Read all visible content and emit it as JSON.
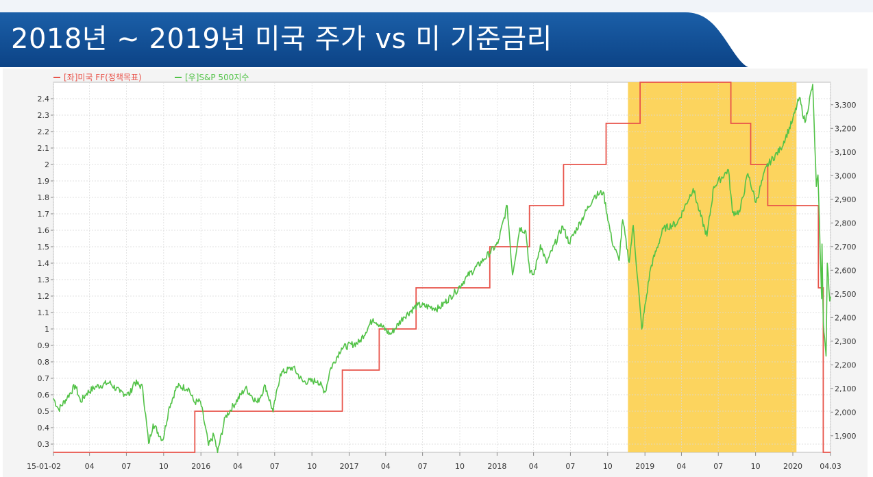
{
  "header": {
    "title": "2018년 ~ 2019년 미국 주가 vs 미 기준금리"
  },
  "colors": {
    "banner": "#0e4d94",
    "highlight": "#fcd050",
    "ff_line": "#e8534a",
    "sp_line": "#52c247",
    "legend_ff": "#e8534a",
    "legend_sp": "#52c247"
  },
  "chart_data": {
    "type": "line",
    "legend": {
      "placement": "top-left",
      "items": [
        "[좌]미국 FF(정책목표)",
        "[우]S&P 500지수"
      ]
    },
    "highlight_range": [
      "2018-11-20",
      "2020-01-10"
    ],
    "x_ticks": [
      {
        "d": "2015-01-02",
        "label": "15-01-02"
      },
      {
        "d": "2015-04-01",
        "label": "04"
      },
      {
        "d": "2015-07-01",
        "label": "07"
      },
      {
        "d": "2015-10-01",
        "label": "10"
      },
      {
        "d": "2016-01-01",
        "label": "2016"
      },
      {
        "d": "2016-04-01",
        "label": "04"
      },
      {
        "d": "2016-07-01",
        "label": "07"
      },
      {
        "d": "2016-10-01",
        "label": "10"
      },
      {
        "d": "2017-01-01",
        "label": "2017"
      },
      {
        "d": "2017-04-01",
        "label": "04"
      },
      {
        "d": "2017-07-01",
        "label": "07"
      },
      {
        "d": "2017-10-01",
        "label": "10"
      },
      {
        "d": "2018-01-01",
        "label": "2018"
      },
      {
        "d": "2018-04-01",
        "label": "04"
      },
      {
        "d": "2018-07-01",
        "label": "07"
      },
      {
        "d": "2018-10-01",
        "label": "10"
      },
      {
        "d": "2019-01-01",
        "label": "2019"
      },
      {
        "d": "2019-04-01",
        "label": "04"
      },
      {
        "d": "2019-07-01",
        "label": "07"
      },
      {
        "d": "2019-10-01",
        "label": "10"
      },
      {
        "d": "2020-01-01",
        "label": "2020"
      },
      {
        "d": "2020-04-03",
        "label": "04.03"
      }
    ],
    "x_range": [
      "2015-01-02",
      "2020-04-03"
    ],
    "y_left": {
      "range": [
        0.25,
        2.5
      ],
      "ticks": [
        0.3,
        0.4,
        0.5,
        0.6,
        0.7,
        0.8,
        0.9,
        1,
        1.1,
        1.2,
        1.3,
        1.4,
        1.5,
        1.6,
        1.7,
        1.8,
        1.9,
        2,
        2.1,
        2.2,
        2.3,
        2.4
      ]
    },
    "y_right": {
      "range": [
        1830,
        3395
      ],
      "ticks": [
        1900,
        2000,
        2100,
        2200,
        2300,
        2400,
        2500,
        2600,
        2700,
        2800,
        2900,
        3000,
        3100,
        3200,
        3300
      ],
      "tick_labels": [
        "1,900",
        "2,000",
        "2,100",
        "2,200",
        "2,300",
        "2,400",
        "2,500",
        "2,600",
        "2,700",
        "2,800",
        "2,900",
        "3,000",
        "3,100",
        "3,200",
        "3,300"
      ]
    },
    "grid": true,
    "series": [
      {
        "name": "[좌]미국 FF(정책목표)",
        "axis": "left",
        "step": true,
        "points": [
          [
            "2015-01-02",
            0.25
          ],
          [
            "2015-12-17",
            0.5
          ],
          [
            "2016-12-15",
            0.75
          ],
          [
            "2017-03-16",
            1.0
          ],
          [
            "2017-06-15",
            1.25
          ],
          [
            "2017-12-14",
            1.5
          ],
          [
            "2018-03-22",
            1.75
          ],
          [
            "2018-06-14",
            2.0
          ],
          [
            "2018-09-27",
            2.25
          ],
          [
            "2018-12-20",
            2.5
          ],
          [
            "2019-08-01",
            2.25
          ],
          [
            "2019-09-19",
            2.0
          ],
          [
            "2019-10-31",
            1.75
          ],
          [
            "2020-03-04",
            1.25
          ],
          [
            "2020-03-16",
            0.25
          ],
          [
            "2020-04-03",
            0.25
          ]
        ]
      },
      {
        "name": "[우]S&P 500지수",
        "axis": "right",
        "points": [
          [
            "2015-01-02",
            2058
          ],
          [
            "2015-01-15",
            2011
          ],
          [
            "2015-02-05",
            2062
          ],
          [
            "2015-02-25",
            2113
          ],
          [
            "2015-03-10",
            2044
          ],
          [
            "2015-03-25",
            2080
          ],
          [
            "2015-04-15",
            2106
          ],
          [
            "2015-05-20",
            2125
          ],
          [
            "2015-06-15",
            2084
          ],
          [
            "2015-07-10",
            2076
          ],
          [
            "2015-07-20",
            2128
          ],
          [
            "2015-08-10",
            2104
          ],
          [
            "2015-08-25",
            1867
          ],
          [
            "2015-09-05",
            1950
          ],
          [
            "2015-09-29",
            1881
          ],
          [
            "2015-10-15",
            2023
          ],
          [
            "2015-11-03",
            2109
          ],
          [
            "2015-12-01",
            2102
          ],
          [
            "2015-12-15",
            2043
          ],
          [
            "2015-12-31",
            2044
          ],
          [
            "2016-01-20",
            1859
          ],
          [
            "2016-02-02",
            1903
          ],
          [
            "2016-02-11",
            1829
          ],
          [
            "2016-03-01",
            1978
          ],
          [
            "2016-04-20",
            2102
          ],
          [
            "2016-05-19",
            2040
          ],
          [
            "2016-06-08",
            2112
          ],
          [
            "2016-06-27",
            2001
          ],
          [
            "2016-07-15",
            2162
          ],
          [
            "2016-08-15",
            2190
          ],
          [
            "2016-09-09",
            2128
          ],
          [
            "2016-10-15",
            2133
          ],
          [
            "2016-11-03",
            2085
          ],
          [
            "2016-11-15",
            2180
          ],
          [
            "2016-12-13",
            2271
          ],
          [
            "2017-01-26",
            2296
          ],
          [
            "2017-03-01",
            2395
          ],
          [
            "2017-04-13",
            2329
          ],
          [
            "2017-05-15",
            2402
          ],
          [
            "2017-06-19",
            2453
          ],
          [
            "2017-08-10",
            2438
          ],
          [
            "2017-09-20",
            2508
          ],
          [
            "2017-10-20",
            2575
          ],
          [
            "2017-11-30",
            2647
          ],
          [
            "2018-01-03",
            2713
          ],
          [
            "2018-01-26",
            2873
          ],
          [
            "2018-02-08",
            2581
          ],
          [
            "2018-02-26",
            2779
          ],
          [
            "2018-03-13",
            2765
          ],
          [
            "2018-03-23",
            2588
          ],
          [
            "2018-04-02",
            2582
          ],
          [
            "2018-04-18",
            2708
          ],
          [
            "2018-05-03",
            2630
          ],
          [
            "2018-06-12",
            2786
          ],
          [
            "2018-06-28",
            2716
          ],
          [
            "2018-08-29",
            2914
          ],
          [
            "2018-09-20",
            2931
          ],
          [
            "2018-10-11",
            2728
          ],
          [
            "2018-10-29",
            2641
          ],
          [
            "2018-11-07",
            2813
          ],
          [
            "2018-11-23",
            2633
          ],
          [
            "2018-12-03",
            2790
          ],
          [
            "2018-12-24",
            2351
          ],
          [
            "2019-01-15",
            2610
          ],
          [
            "2019-02-15",
            2775
          ],
          [
            "2019-03-22",
            2800
          ],
          [
            "2019-04-30",
            2946
          ],
          [
            "2019-05-15",
            2850
          ],
          [
            "2019-06-03",
            2744
          ],
          [
            "2019-06-20",
            2954
          ],
          [
            "2019-07-26",
            3025
          ],
          [
            "2019-08-05",
            2844
          ],
          [
            "2019-08-23",
            2847
          ],
          [
            "2019-09-12",
            3009
          ],
          [
            "2019-10-02",
            2887
          ],
          [
            "2019-10-28",
            3039
          ],
          [
            "2019-12-02",
            3114
          ],
          [
            "2019-12-31",
            3231
          ],
          [
            "2020-01-17",
            3330
          ],
          [
            "2020-01-31",
            3225
          ],
          [
            "2020-02-19",
            3386
          ],
          [
            "2020-02-28",
            2954
          ],
          [
            "2020-03-03",
            3003
          ],
          [
            "2020-03-12",
            2480
          ],
          [
            "2020-03-13",
            2711
          ],
          [
            "2020-03-16",
            2386
          ],
          [
            "2020-03-23",
            2237
          ],
          [
            "2020-03-26",
            2630
          ],
          [
            "2020-04-01",
            2470
          ],
          [
            "2020-04-03",
            2489
          ]
        ]
      }
    ]
  }
}
